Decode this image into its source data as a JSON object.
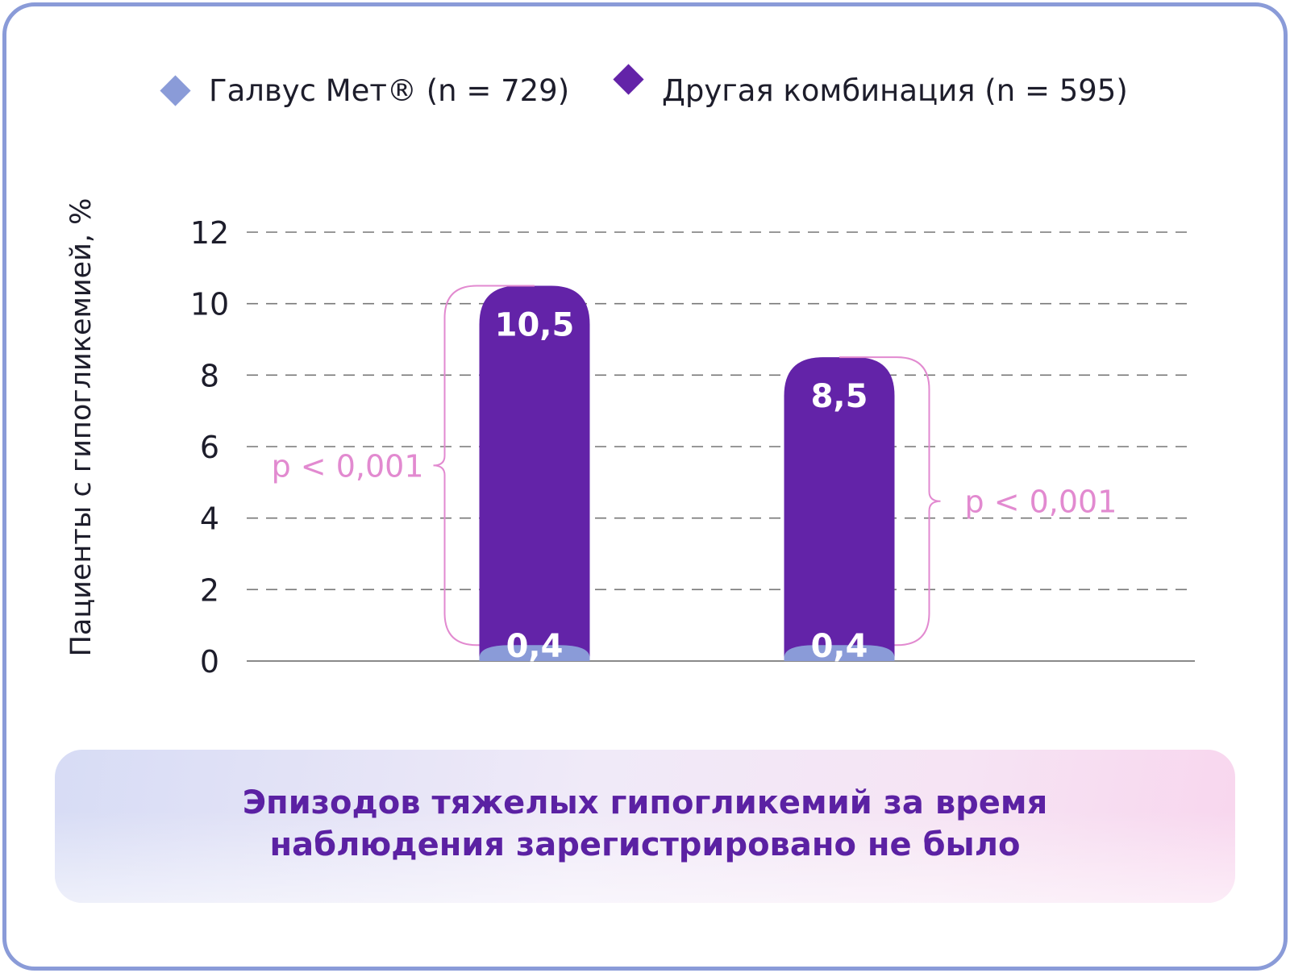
{
  "legend": {
    "items": [
      {
        "label": "Галвус Мет® (n = 729)",
        "color": "#8a9bd8"
      },
      {
        "label": "Другая комбинация (n = 595)",
        "color": "#6323a8"
      }
    ]
  },
  "note": {
    "line1": "Эпизодов тяжелых гипогликемий за время",
    "line2": "наблюдения зарегистрировано не было"
  },
  "colors": {
    "primary": "#6323a8",
    "secondary": "#8a9bd8",
    "pvalue": "#e28ad0",
    "grid": "#777777"
  },
  "chart_data": {
    "type": "bar",
    "ylabel": "Пациенты с гипогликемией, %",
    "ylim": [
      0,
      12
    ],
    "yticks": [
      "0",
      "2",
      "4",
      "6",
      "8",
      "10",
      "12"
    ],
    "grid": true,
    "stacked": true,
    "groups": [
      {
        "total": 10.5,
        "total_label": "10,5",
        "base": 0.4,
        "base_label": "0,4",
        "pvalue": "p < 0,001",
        "pvalue_side": "left"
      },
      {
        "total": 8.5,
        "total_label": "8,5",
        "base": 0.4,
        "base_label": "0,4",
        "pvalue": "p < 0,001",
        "pvalue_side": "right"
      }
    ]
  }
}
